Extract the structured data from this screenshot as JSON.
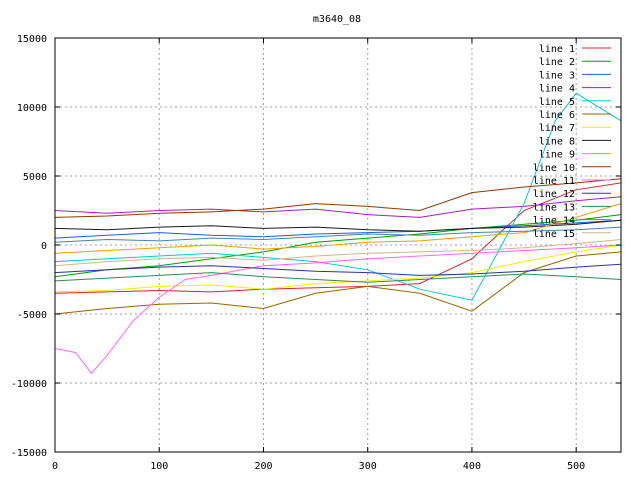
{
  "chart_data": {
    "type": "line",
    "title": "m3640_08",
    "xlabel": "",
    "ylabel": "",
    "xlim": [
      0,
      543
    ],
    "ylim": [
      -15000,
      15000
    ],
    "x_ticks": [
      0,
      100,
      200,
      300,
      400,
      500
    ],
    "y_ticks": [
      -15000,
      -10000,
      -5000,
      0,
      5000,
      10000,
      15000
    ],
    "grid": true,
    "legend_position": "top-right",
    "series": [
      {
        "name": "line 1",
        "color": "#d62728",
        "x": [
          0,
          50,
          100,
          150,
          200,
          250,
          300,
          350,
          400,
          450,
          500,
          543
        ],
        "y": [
          -3500,
          -3400,
          -3300,
          -3400,
          -3200,
          -3100,
          -3000,
          -2800,
          -1000,
          2500,
          4000,
          4500
        ]
      },
      {
        "name": "line 2",
        "color": "#009e00",
        "x": [
          0,
          50,
          100,
          150,
          200,
          250,
          300,
          350,
          400,
          450,
          500,
          543
        ],
        "y": [
          -2300,
          -1800,
          -1500,
          -1000,
          -500,
          200,
          500,
          800,
          1200,
          1500,
          1800,
          2200
        ]
      },
      {
        "name": "line 3",
        "color": "#1f5fd0",
        "x": [
          0,
          50,
          100,
          150,
          200,
          250,
          300,
          350,
          400,
          450,
          500,
          543
        ],
        "y": [
          500,
          700,
          900,
          700,
          600,
          800,
          900,
          1000,
          1200,
          1400,
          1600,
          1800
        ]
      },
      {
        "name": "line 4",
        "color": "#a020c0",
        "x": [
          0,
          50,
          100,
          150,
          200,
          250,
          300,
          350,
          400,
          450,
          500,
          543
        ],
        "y": [
          2500,
          2300,
          2500,
          2600,
          2400,
          2600,
          2200,
          2000,
          2600,
          2800,
          3200,
          3500
        ]
      },
      {
        "name": "line 5",
        "color": "#00cccc",
        "x": [
          0,
          50,
          100,
          150,
          200,
          250,
          300,
          350,
          400,
          450,
          480,
          500,
          543
        ],
        "y": [
          -1200,
          -1000,
          -800,
          -600,
          -900,
          -1200,
          -1800,
          -3200,
          -4000,
          3000,
          9000,
          11000,
          9000
        ]
      },
      {
        "name": "line 6",
        "color": "#996600",
        "x": [
          0,
          50,
          100,
          150,
          200,
          250,
          300,
          350,
          400,
          450,
          500,
          543
        ],
        "y": [
          -5000,
          -4600,
          -4300,
          -4200,
          -4600,
          -3500,
          -3000,
          -3500,
          -4800,
          -2000,
          -800,
          -500
        ]
      },
      {
        "name": "line 7",
        "color": "#eeee00",
        "x": [
          0,
          50,
          100,
          150,
          200,
          250,
          300,
          350,
          400,
          450,
          500,
          543
        ],
        "y": [
          -3400,
          -3300,
          -3000,
          -2900,
          -3200,
          -2800,
          -2600,
          -2400,
          -2000,
          -1200,
          -500,
          0
        ]
      },
      {
        "name": "line 8",
        "color": "#1a1a1a",
        "x": [
          0,
          50,
          100,
          150,
          200,
          250,
          300,
          350,
          400,
          450,
          500,
          543
        ],
        "y": [
          1200,
          1100,
          1300,
          1400,
          1200,
          1300,
          1100,
          1000,
          1200,
          1300,
          1500,
          1800
        ]
      },
      {
        "name": "line 9",
        "color": "#f0a000",
        "x": [
          0,
          50,
          100,
          150,
          200,
          250,
          300,
          350,
          400,
          450,
          500,
          543
        ],
        "y": [
          -600,
          -400,
          -200,
          0,
          -300,
          -100,
          200,
          300,
          600,
          900,
          2000,
          3000
        ]
      },
      {
        "name": "line 10",
        "color": "#8b3a00",
        "x": [
          0,
          50,
          100,
          150,
          200,
          250,
          300,
          350,
          400,
          450,
          500,
          543
        ],
        "y": [
          2000,
          2100,
          2300,
          2400,
          2600,
          3000,
          2800,
          2500,
          3800,
          4200,
          4500,
          4800
        ]
      },
      {
        "name": "line 11",
        "color": "#ff66ff",
        "x": [
          0,
          20,
          35,
          50,
          75,
          100,
          125,
          150,
          200,
          250,
          300,
          350,
          400,
          450,
          500,
          543
        ],
        "y": [
          -7500,
          -7800,
          -9300,
          -8000,
          -5500,
          -3800,
          -2500,
          -2200,
          -1500,
          -1300,
          -1000,
          -800,
          -600,
          -400,
          -200,
          0
        ]
      },
      {
        "name": "line 12",
        "color": "#3030a0",
        "x": [
          0,
          50,
          100,
          150,
          200,
          250,
          300,
          350,
          400,
          450,
          500,
          543
        ],
        "y": [
          -2000,
          -1800,
          -1600,
          -1500,
          -1700,
          -1900,
          -2000,
          -2200,
          -2100,
          -1900,
          -1600,
          -1400
        ]
      },
      {
        "name": "line 13",
        "color": "#2e8b57",
        "x": [
          0,
          50,
          100,
          150,
          200,
          250,
          300,
          350,
          400,
          450,
          500,
          543
        ],
        "y": [
          -2600,
          -2400,
          -2200,
          -2000,
          -2300,
          -2500,
          -2700,
          -2500,
          -2300,
          -2100,
          -2300,
          -2500
        ]
      },
      {
        "name": "line 14",
        "color": "#4682b4",
        "x": [
          0,
          50,
          100,
          150,
          200,
          250,
          300,
          350,
          400,
          450,
          500,
          543
        ],
        "y": [
          200,
          400,
          300,
          500,
          400,
          600,
          800,
          700,
          900,
          1000,
          1100,
          1300
        ]
      },
      {
        "name": "line 15",
        "color": "#d2b48c",
        "x": [
          0,
          50,
          100,
          150,
          200,
          250,
          300,
          350,
          400,
          450,
          500,
          543
        ],
        "y": [
          -1500,
          -1200,
          -1000,
          -900,
          -1100,
          -800,
          -600,
          -500,
          -400,
          -200,
          100,
          400
        ]
      }
    ]
  }
}
